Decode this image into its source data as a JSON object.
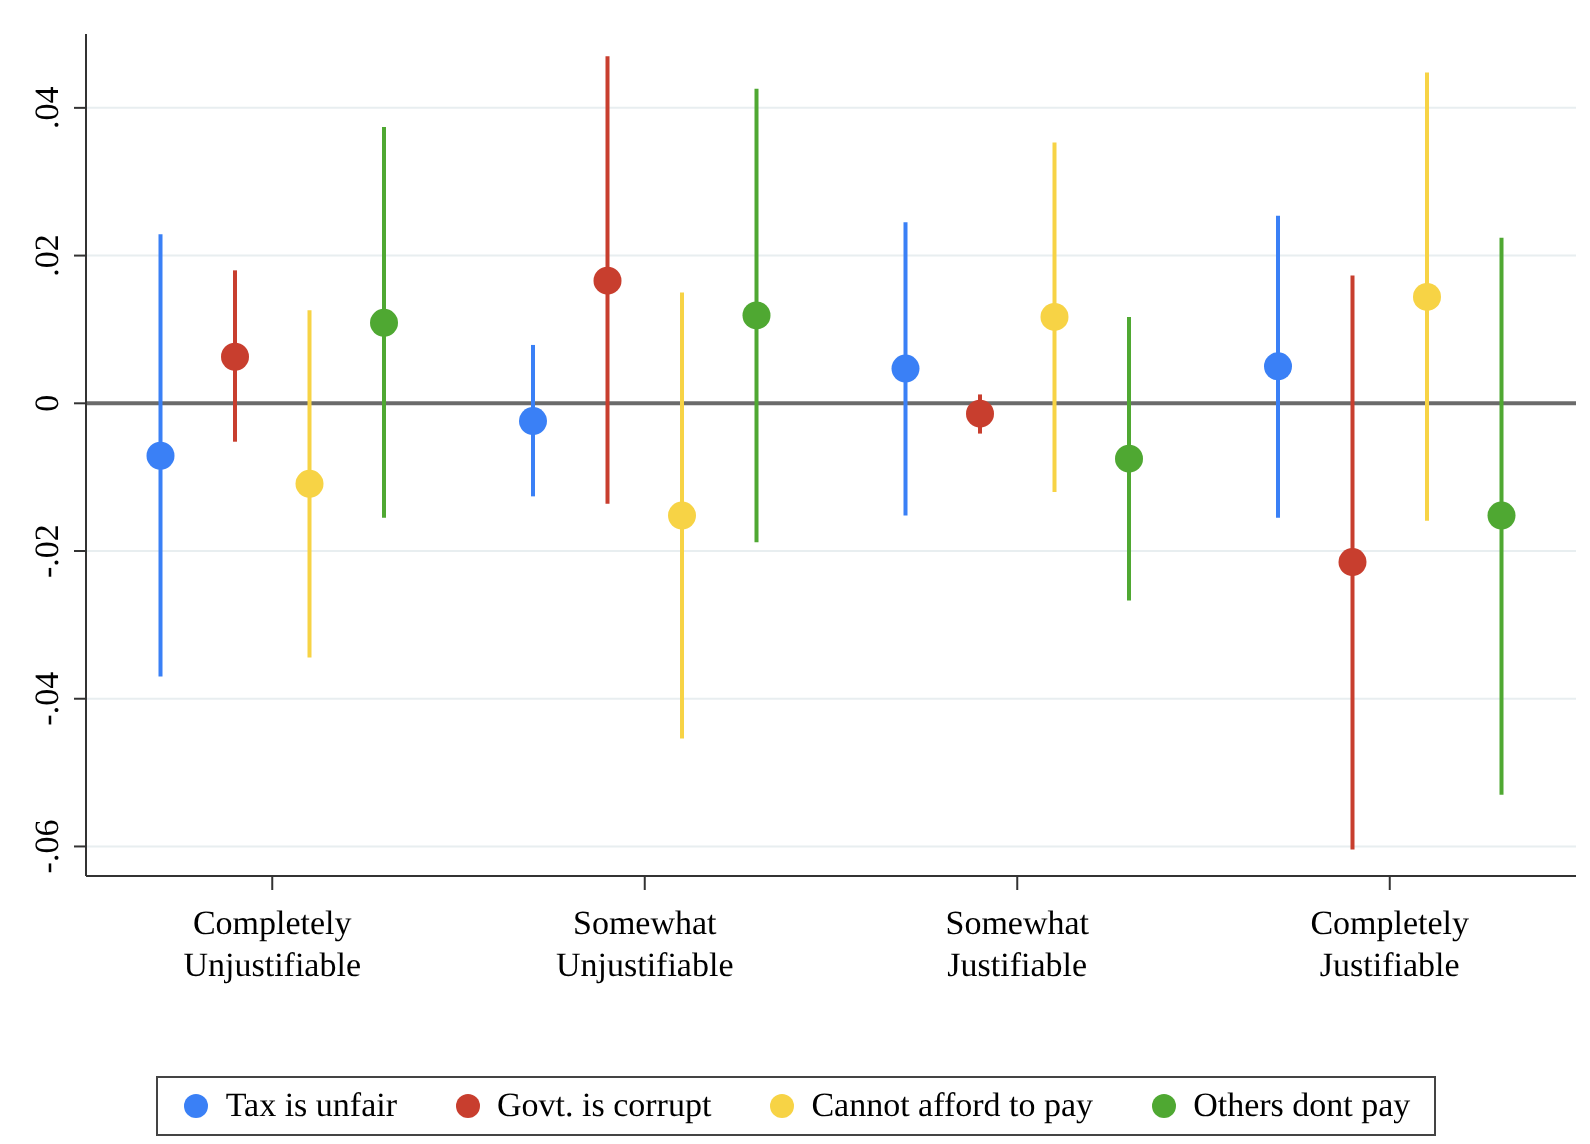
{
  "chart_data": {
    "type": "scatter",
    "categories": [
      "Completely Unjustifiable",
      "Somewhat Unjustifiable",
      "Somewhat Justifiable",
      "Completely Justifiable"
    ],
    "series": [
      {
        "name": "Tax is unfair",
        "color": "#3a80f6",
        "values": [
          -0.0071,
          -0.0024,
          0.0047,
          0.005
        ],
        "errors": [
          [
            -0.037,
            0.0229
          ],
          [
            -0.0126,
            0.0079
          ],
          [
            -0.0152,
            0.0245
          ],
          [
            -0.0155,
            0.0254
          ]
        ]
      },
      {
        "name": "Govt. is corrupt",
        "color": "#c83e2e",
        "values": [
          0.0063,
          0.0166,
          -0.0014,
          -0.0215
        ],
        "errors": [
          [
            -0.0052,
            0.018
          ],
          [
            -0.0136,
            0.047
          ],
          [
            -0.0041,
            0.0012
          ],
          [
            -0.0604,
            0.0173
          ]
        ]
      },
      {
        "name": "Cannot afford to pay",
        "color": "#f7d345",
        "values": [
          -0.0109,
          -0.0152,
          0.0117,
          0.0144
        ],
        "errors": [
          [
            -0.0344,
            0.0126
          ],
          [
            -0.0454,
            0.015
          ],
          [
            -0.012,
            0.0353
          ],
          [
            -0.0159,
            0.0448
          ]
        ]
      },
      {
        "name": "Others dont pay",
        "color": "#4fa832",
        "values": [
          0.0109,
          0.0119,
          -0.0075,
          -0.0152
        ],
        "errors": [
          [
            -0.0155,
            0.0374
          ],
          [
            -0.0188,
            0.0426
          ],
          [
            -0.0267,
            0.0117
          ],
          [
            -0.053,
            0.0224
          ]
        ]
      }
    ],
    "ylim": [
      -0.064,
      0.05
    ],
    "yticks": [
      {
        "value": -0.06,
        "label": "-.06"
      },
      {
        "value": -0.04,
        "label": "-.04"
      },
      {
        "value": -0.02,
        "label": "-.02"
      },
      {
        "value": 0,
        "label": "0"
      },
      {
        "value": 0.02,
        "label": ".02"
      },
      {
        "value": 0.04,
        "label": ".04"
      }
    ],
    "ref_lines": [
      {
        "axis": "y",
        "value": 0,
        "color": "#6b6b6b"
      }
    ],
    "grid": "y",
    "legend": "bottom",
    "marker": "circle"
  }
}
